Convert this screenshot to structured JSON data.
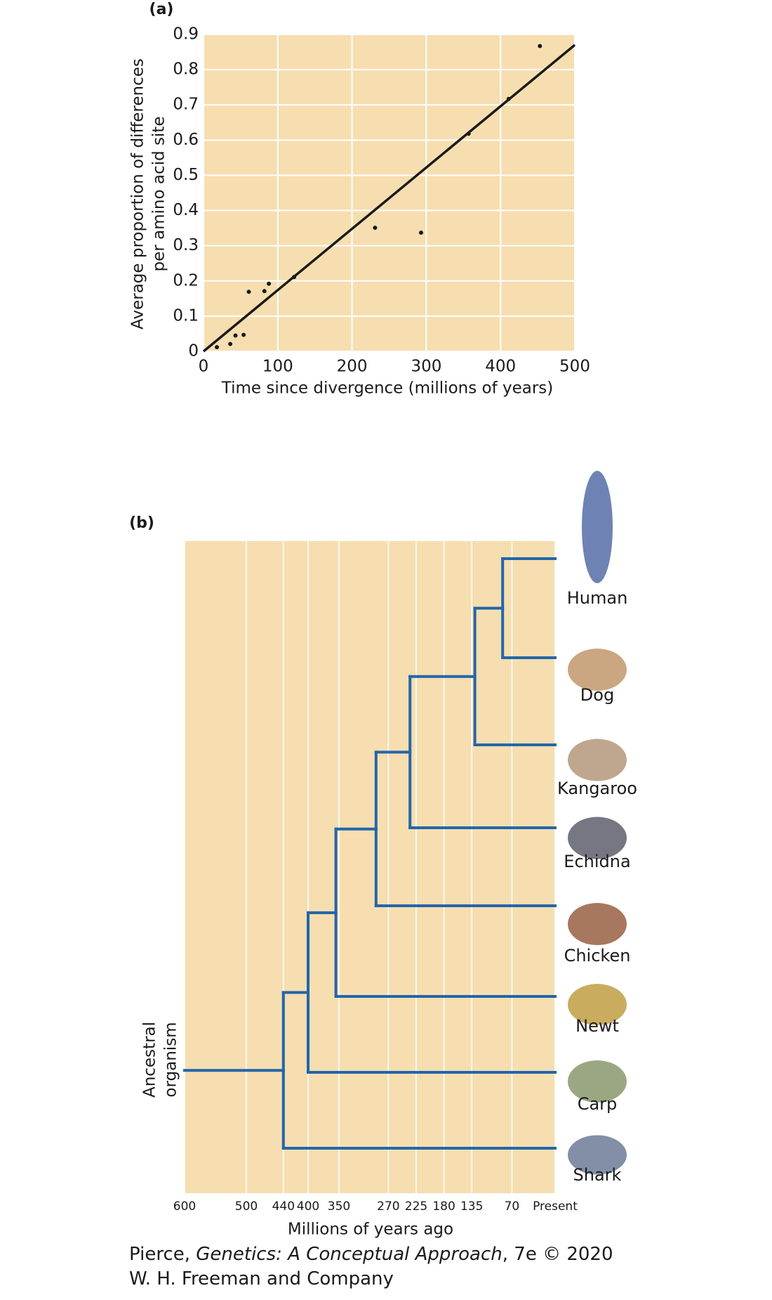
{
  "chart_data": [
    {
      "type": "scatter",
      "panel_label": "(a)",
      "ylabel": [
        "Average proportion of differences",
        "per amino acid site"
      ],
      "xlabel": "Time since divergence (millions of years)",
      "x": [
        18,
        36,
        43,
        54,
        61,
        82,
        88,
        122,
        231,
        293,
        357,
        411,
        453
      ],
      "values": [
        0.012,
        0.021,
        0.045,
        0.047,
        0.169,
        0.171,
        0.192,
        0.211,
        0.351,
        0.337,
        0.618,
        0.717,
        0.867
      ],
      "fit": {
        "x": [
          0,
          500
        ],
        "values": [
          0,
          0.87
        ]
      },
      "xlim": [
        0,
        500
      ],
      "ylim": [
        0,
        0.9
      ],
      "xticks": [
        0,
        100,
        200,
        300,
        400,
        500
      ],
      "yticks": [
        0,
        0.1,
        0.2,
        0.3,
        0.4,
        0.5,
        0.6,
        0.7,
        0.8,
        0.9
      ],
      "grid": true,
      "color": "#1a1a1a",
      "background": "#f6deb0"
    },
    {
      "type": "tree",
      "panel_label": "(b)",
      "xlabel": "Millions of years ago",
      "root_label": [
        "Ancestral",
        "organism"
      ],
      "leaves": [
        "Human",
        "Dog",
        "Kangaroo",
        "Echidna",
        "Chicken",
        "Newt",
        "Carp",
        "Shark"
      ],
      "split_times": [
        85,
        130,
        235,
        290,
        355,
        400,
        440
      ],
      "xlim": [
        600,
        0
      ],
      "xticks": [
        600,
        500,
        440,
        400,
        350,
        270,
        225,
        180,
        135,
        70,
        {
          "value": 0,
          "label": "Present"
        }
      ],
      "grid": true,
      "color": "#2266aa",
      "background": "#f6deb0"
    }
  ],
  "credit": {
    "line1": [
      "Pierce, ",
      "Genetics: A Conceptual Approach",
      ", 7e © 2020"
    ],
    "line2": "W. H. Freeman and Company"
  }
}
